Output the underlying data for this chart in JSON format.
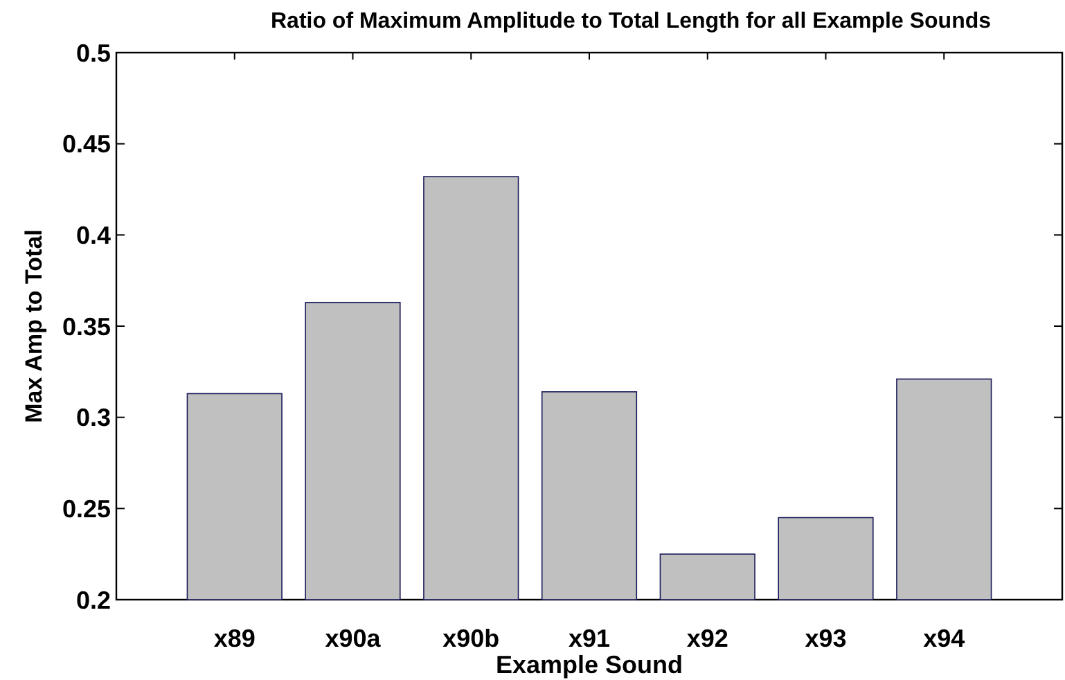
{
  "chart_data": {
    "type": "bar",
    "title": "Ratio of Maximum Amplitude to Total Length for all Example Sounds",
    "xlabel": "Example Sound",
    "ylabel": "Max Amp to Total",
    "categories": [
      "x89",
      "x90a",
      "x90b",
      "x91",
      "x92",
      "x93",
      "x94"
    ],
    "values": [
      0.313,
      0.363,
      0.432,
      0.314,
      0.225,
      0.245,
      0.321
    ],
    "color": "#c0c0c0",
    "ylim": [
      0.2,
      0.5
    ],
    "yticks": [
      0.2,
      {
        "value": 0.25,
        "label": "0.25"
      },
      0.3,
      {
        "value": 0.35,
        "label": "0.35"
      },
      0.4,
      {
        "value": 0.45,
        "label": "0.45"
      },
      0.5
    ],
    "grid": false
  }
}
